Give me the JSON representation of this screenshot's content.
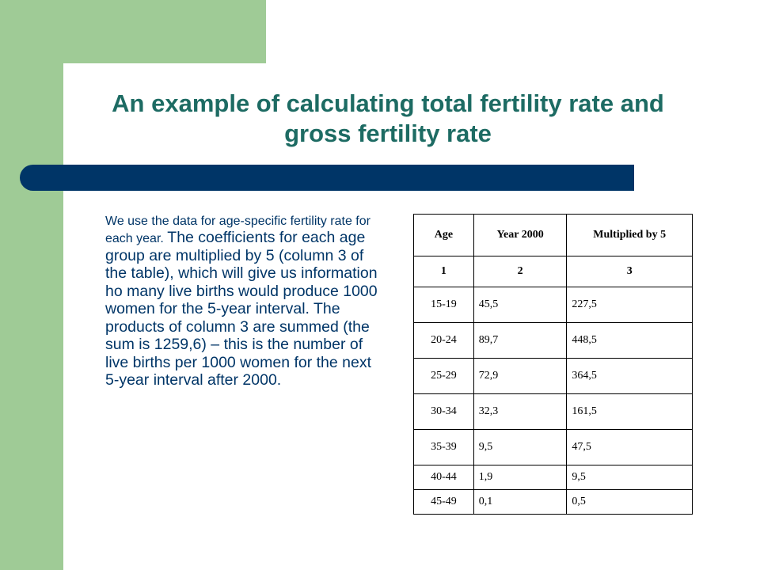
{
  "title": {
    "line1": "An example of calculating total fertility rate and",
    "line2": "gross fertility rate"
  },
  "body": {
    "part1": "We use the data for age-specific fertility rate for each year.",
    "part2": "The coefficients for each age group are multiplied by 5 (column 3 of the table), which will give us information ho many live births would produce 1000 women for the 5-year interval. The products of column 3 are summed (the sum is 1259,6) – this is the number of live births per 1000 women for the next 5-year interval after 2000."
  },
  "table": {
    "headers": [
      "Age",
      "Year 2000",
      "Multiplied by 5"
    ],
    "column_numbers": [
      "1",
      "2",
      "3"
    ],
    "rows": [
      [
        "15-19",
        "45,5",
        "227,5"
      ],
      [
        "20-24",
        "89,7",
        "448,5"
      ],
      [
        "25-29",
        "72,9",
        "364,5"
      ],
      [
        "30-34",
        "32,3",
        "161,5"
      ],
      [
        "35-39",
        "9,5",
        "47,5"
      ],
      [
        "40-44",
        "1,9",
        "9,5"
      ],
      [
        "45-49",
        "0,1",
        "0,5"
      ]
    ]
  },
  "colors": {
    "title": "#1d6b63",
    "body_text": "#003567",
    "accent_bar": "#003567",
    "side_strip": "#9fcb96"
  }
}
